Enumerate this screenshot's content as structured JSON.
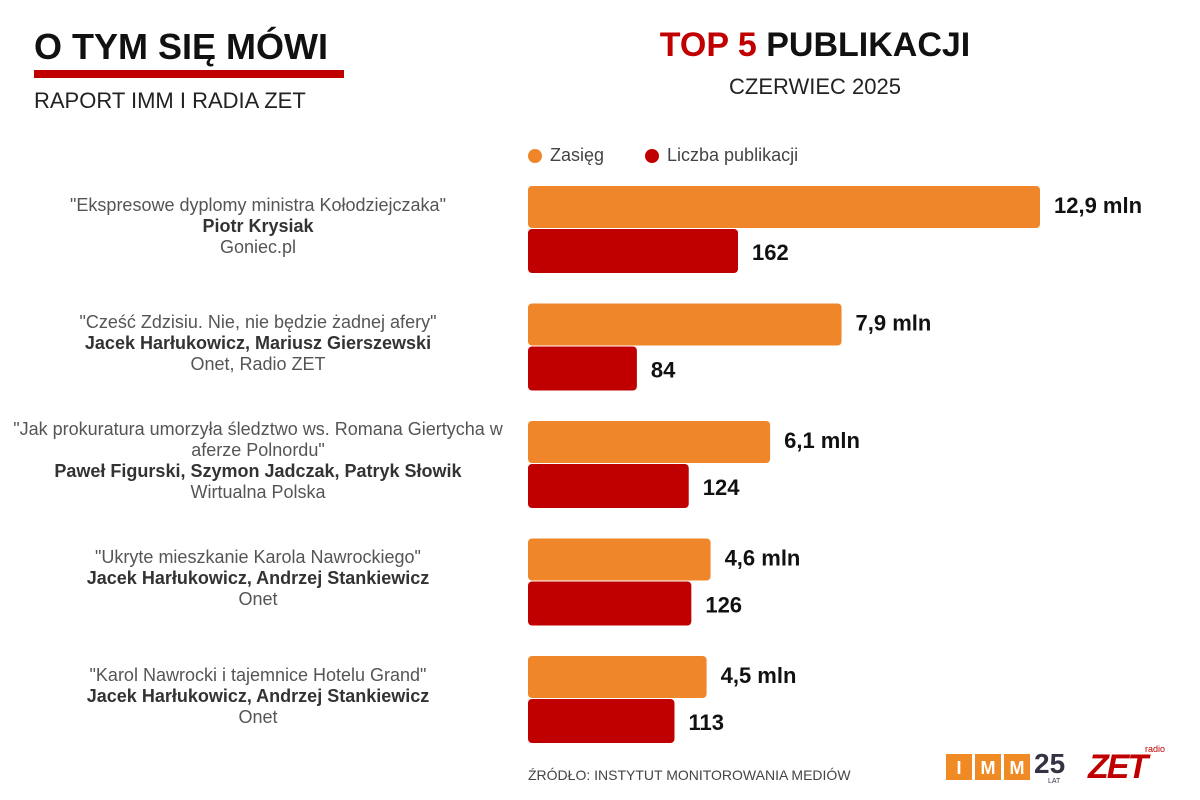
{
  "header": {
    "title": "O TYM SIĘ MÓWI",
    "subtitle": "RAPORT IMM I RADIA ZET"
  },
  "chart_data": {
    "type": "bar",
    "title_highlight": "TOP 5",
    "title": "PUBLIKACJI",
    "subtitle": "CZERWIEC 2025",
    "categories": [
      "\"Ekspresowe dyplomy ministra Kołodziejczaka\"",
      "\"Cześć Zdzisiu. Nie, nie będzie żadnej afery\"",
      "\"Jak prokuratura umorzyła śledztwo ws. Romana Giertycha w aferze Polnordu\"",
      "\"Ukryte mieszkanie Karola Nawrockiego\"",
      "\"Karol Nawrocki i tajemnice Hotelu Grand\""
    ],
    "authors": [
      "Piotr Krysiak",
      "Jacek Harłukowicz, Mariusz Gierszewski",
      "Paweł Figurski, Szymon Jadczak, Patryk Słowik",
      "Jacek Harłukowicz, Andrzej Stankiewicz",
      "Jacek Harłukowicz, Andrzej Stankiewicz"
    ],
    "outlets": [
      "Goniec.pl",
      "Onet, Radio ZET",
      "Wirtualna Polska",
      "Onet",
      "Onet"
    ],
    "series": [
      {
        "name": "Zasięg",
        "color": "#f0862a",
        "values": [
          12.9,
          7.9,
          6.1,
          4.6,
          4.5
        ],
        "value_labels": [
          "12,9 mln",
          "7,9 mln",
          "6,1 mln",
          "4,6 mln",
          "4,5 mln"
        ]
      },
      {
        "name": "Liczba publikacji",
        "color": "#c00000",
        "values": [
          162,
          84,
          124,
          126,
          113
        ]
      }
    ]
  },
  "footer": {
    "source": "ŹRÓDŁO: INSTYTUT MONITOROWANIA MEDIÓW",
    "logo_imm": [
      "I",
      "M",
      "M"
    ],
    "logo_25": "25",
    "logo_lat": "LAT",
    "logo_radio": "radio",
    "logo_zet": "ZET"
  }
}
